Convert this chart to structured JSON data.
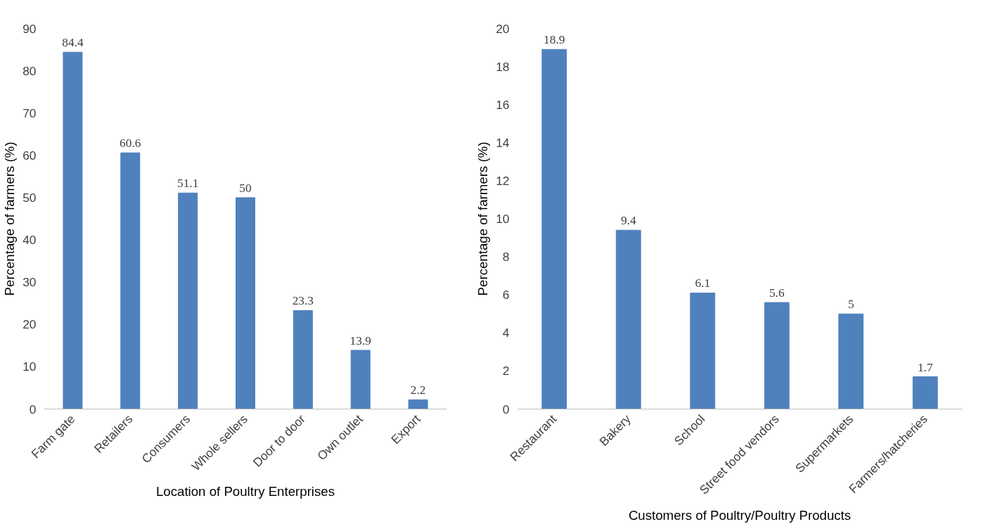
{
  "chart_data": [
    {
      "type": "bar",
      "xlabel": "Location of Poultry Enterprises",
      "ylabel": "Percentage of farmers (%)",
      "categories": [
        "Farm gate",
        "Retailers",
        "Consumers",
        "Whole sellers",
        "Door to door",
        "Own outlet",
        "Export"
      ],
      "values": [
        84.4,
        60.6,
        51.1,
        50,
        23.3,
        13.9,
        2.2
      ],
      "color": "#4f81bd",
      "ylim": [
        0,
        90
      ],
      "yticks": [
        0,
        10,
        20,
        30,
        40,
        50,
        60,
        70,
        80,
        90
      ],
      "grid": false,
      "legend": false,
      "data_labels": true
    },
    {
      "type": "bar",
      "xlabel": "Customers of Poultry/Poultry Products",
      "ylabel": "Percentage of farmers (%)",
      "categories": [
        "Restaurant",
        "Bakery",
        "School",
        "Street food vendors",
        "Supermarkets",
        "Farmers/hatcheries"
      ],
      "values": [
        18.9,
        9.4,
        6.1,
        5.6,
        5,
        1.7
      ],
      "color": "#4f81bd",
      "ylim": [
        0,
        20
      ],
      "yticks": [
        0,
        2,
        4,
        6,
        8,
        10,
        12,
        14,
        16,
        18,
        20
      ],
      "grid": false,
      "legend": false,
      "data_labels": true
    }
  ]
}
